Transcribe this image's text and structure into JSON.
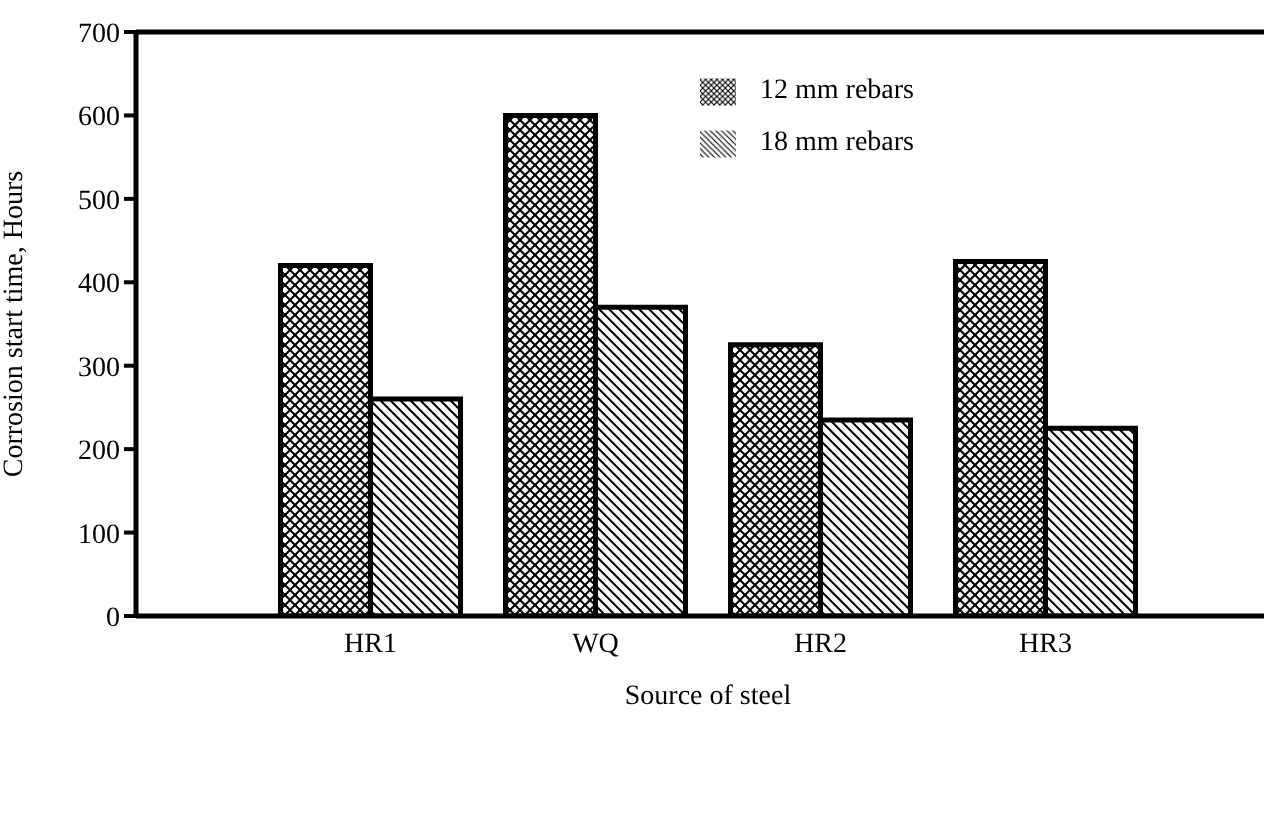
{
  "chart_data": {
    "type": "bar",
    "xlabel": "Source of steel",
    "ylabel": "Corrosion start time, Hours",
    "categories": [
      "HR1",
      "WQ",
      "HR2",
      "HR3"
    ],
    "series": [
      {
        "name": "12 mm rebars",
        "color": "#000000",
        "values": [
          420,
          600,
          325,
          425
        ]
      },
      {
        "name": "18 mm rebars",
        "color": "#000000",
        "values": [
          260,
          370,
          235,
          225
        ]
      }
    ],
    "ylim": [
      0,
      700
    ],
    "yticks": [
      0,
      100,
      200,
      300,
      400,
      500,
      600,
      700
    ],
    "legend": "top right"
  }
}
